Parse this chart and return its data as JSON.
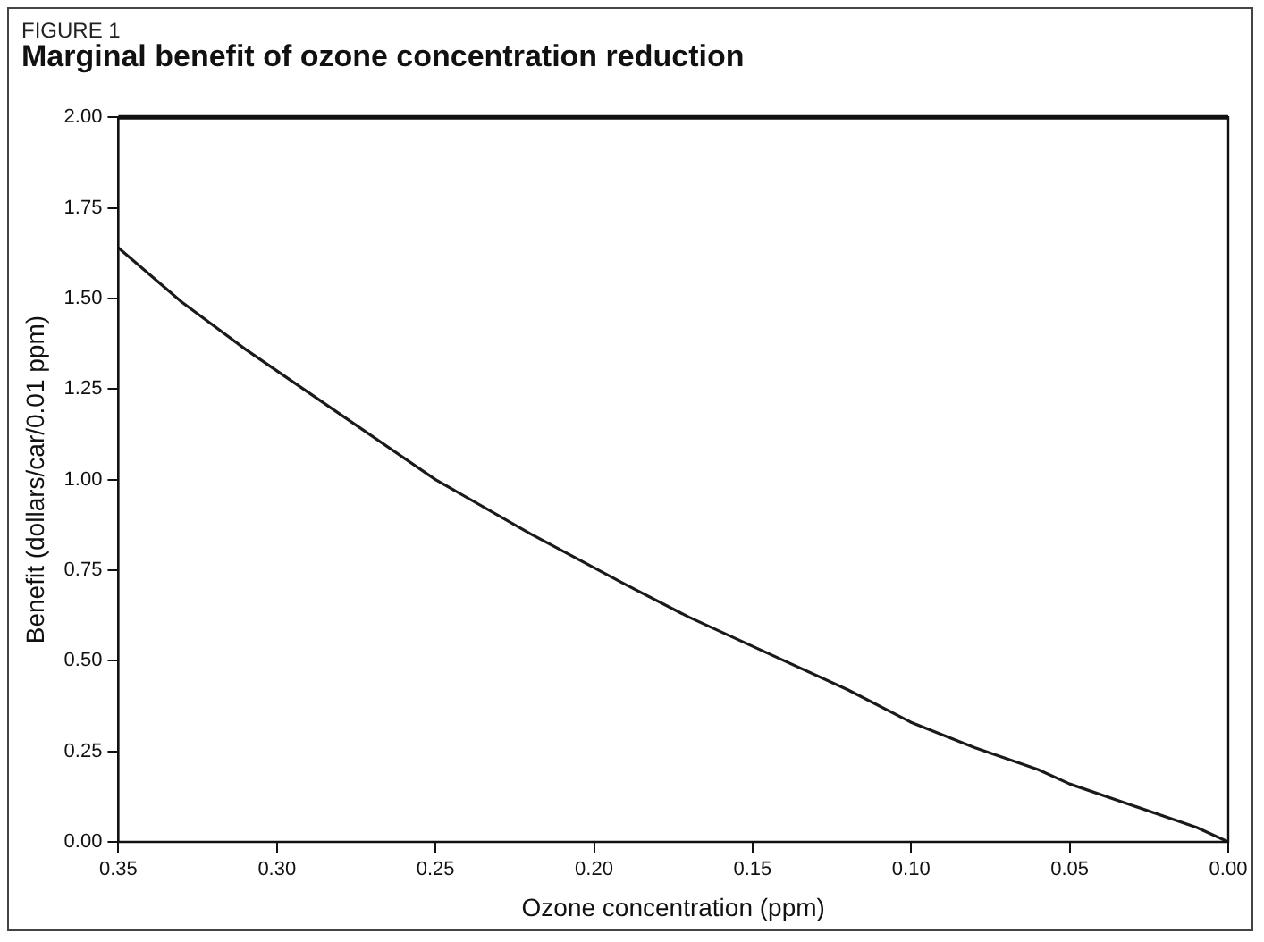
{
  "chart_data": {
    "type": "line",
    "title": "Marginal benefit of ozone concentration reduction",
    "annotations": [
      "FIGURE 1"
    ],
    "xlabel": "Ozone concentration (ppm)",
    "ylabel": "Benefit (dollars/car/0.01 ppm)",
    "series": [
      {
        "color": "#1a1a1a",
        "x": [
          0.35,
          0.33,
          0.31,
          0.28,
          0.25,
          0.22,
          0.19,
          0.17,
          0.15,
          0.12,
          0.1,
          0.08,
          0.06,
          0.05,
          0.03,
          0.01,
          0.0
        ],
        "values": [
          1.64,
          1.49,
          1.36,
          1.18,
          1.0,
          0.85,
          0.71,
          0.62,
          0.54,
          0.42,
          0.33,
          0.26,
          0.2,
          0.16,
          0.1,
          0.04,
          0.0
        ]
      }
    ],
    "xlim": [
      0.35,
      0.0
    ],
    "ylim": [
      0,
      2
    ],
    "xticks": [
      {
        "value": 0.35,
        "label": "0.35"
      },
      {
        "value": 0.3,
        "label": "0.30"
      },
      {
        "value": 0.25,
        "label": "0.25"
      },
      {
        "value": 0.2,
        "label": "0.20"
      },
      {
        "value": 0.15,
        "label": "0.15"
      },
      {
        "value": 0.1,
        "label": "0.10"
      },
      {
        "value": 0.05,
        "label": "0.05"
      },
      {
        "value": 0,
        "label": "0.00"
      }
    ],
    "yticks": [
      {
        "value": 0,
        "label": "0.00"
      },
      {
        "value": 0.25,
        "label": "0.25"
      },
      {
        "value": 0.5,
        "label": "0.50"
      },
      {
        "value": 0.75,
        "label": "0.75"
      },
      {
        "value": 1,
        "label": "1.00"
      },
      {
        "value": 1.25,
        "label": "1.25"
      },
      {
        "value": 1.5,
        "label": "1.50"
      },
      {
        "value": 1.75,
        "label": "1.75"
      },
      {
        "value": 2,
        "label": "2.00"
      }
    ],
    "grid": false,
    "legend": false,
    "marker": "none",
    "line_style": "solid"
  }
}
